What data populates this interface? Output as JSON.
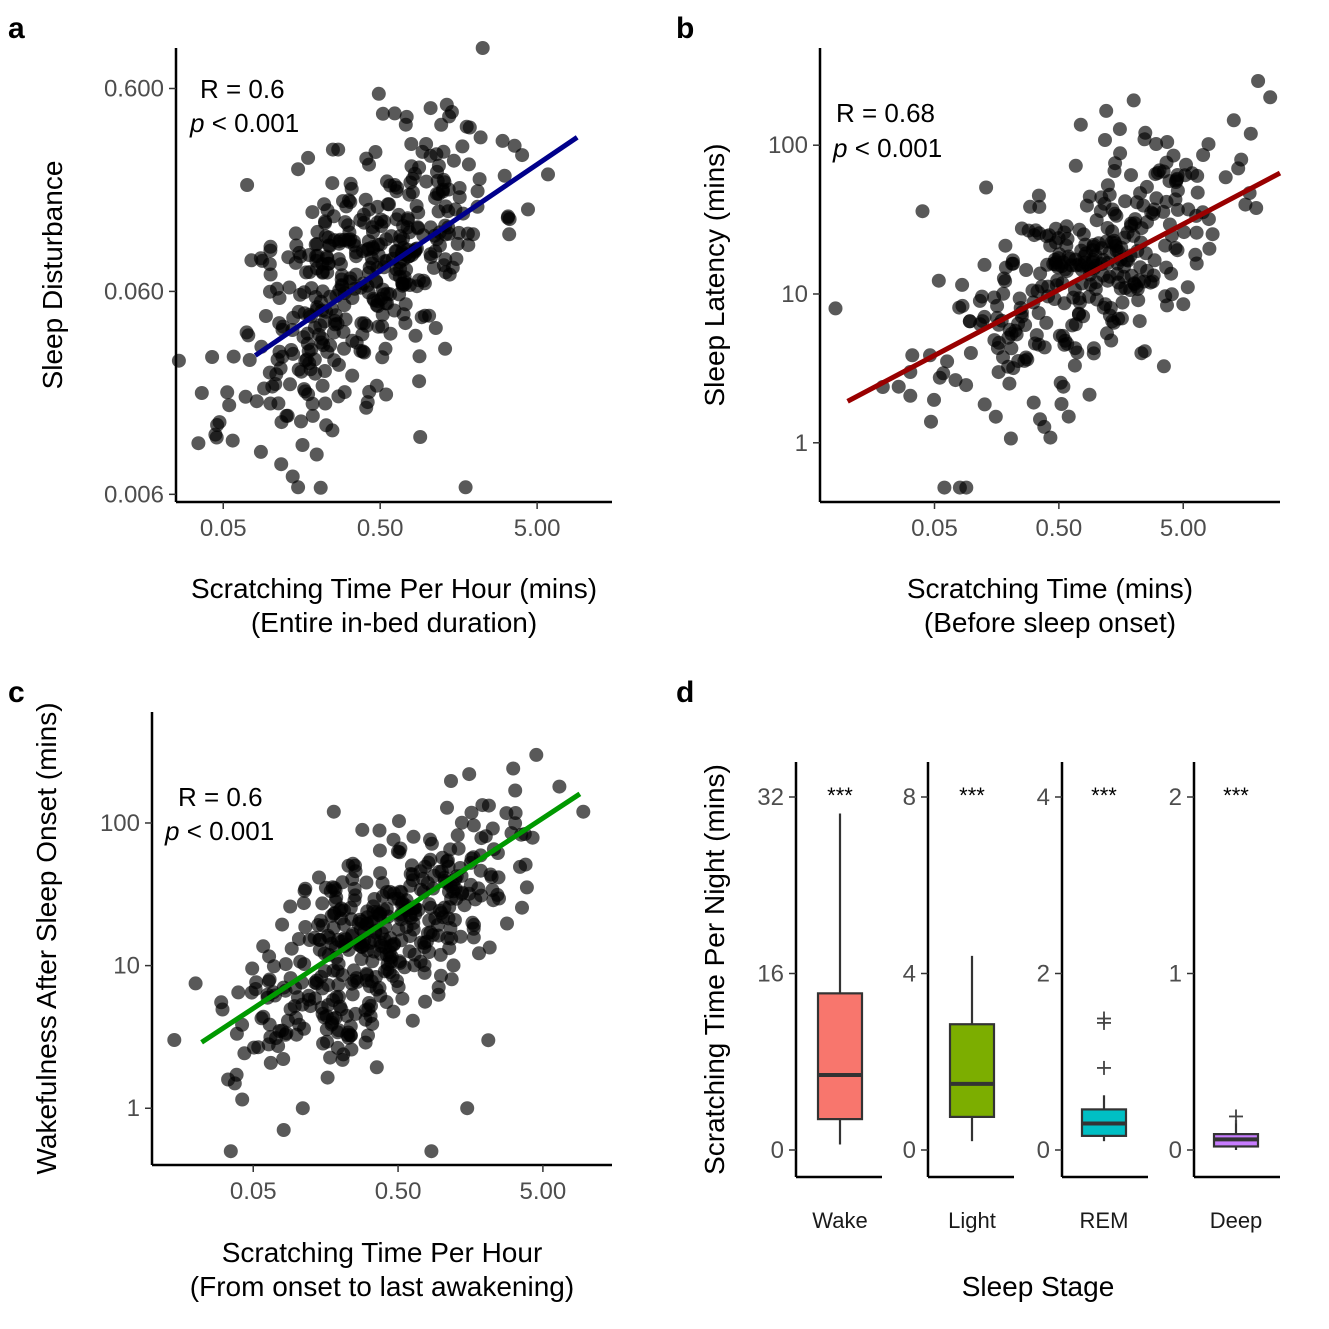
{
  "chart_data": [
    {
      "panel": "a",
      "type": "scatter",
      "xscale": "log",
      "yscale": "log",
      "xlim": [
        0.025,
        15
      ],
      "ylim": [
        0.0055,
        0.95
      ],
      "xticks": [
        0.05,
        0.5,
        5
      ],
      "xtick_labels": [
        "0.05",
        "0.50",
        "5.00"
      ],
      "yticks": [
        0.006,
        0.06,
        0.6
      ],
      "ytick_labels": [
        "0.006",
        "0.060",
        "0.600"
      ],
      "ylabel": "Sleep Disturbance",
      "xlabel_lines": [
        "Scratching Time Per Hour (mins)",
        "(Entire in-bed duration)"
      ],
      "annotation": {
        "r": "R = 0.6",
        "p_symbol": "p",
        "p_rest": " < 0.001"
      },
      "fit": {
        "x": [
          0.08,
          9
        ],
        "y": [
          0.029,
          0.345
        ],
        "color": "#00008b"
      },
      "n_points": 420,
      "seed": 11,
      "slope": 0.6,
      "x_center_log": -0.4,
      "x_sd_log": 0.42,
      "noise_sd_log": 0.3,
      "extra_points": [
        [
          0.15,
          0.0065
        ],
        [
          0.16,
          0.0105
        ],
        [
          0.9,
          0.0115
        ],
        [
          1.75,
          0.0065
        ],
        [
          0.25,
          0.3
        ],
        [
          0.27,
          0.3
        ],
        [
          0.15,
          0.24
        ],
        [
          2.25,
          0.95
        ],
        [
          0.52,
          0.45
        ]
      ]
    },
    {
      "panel": "b",
      "type": "scatter",
      "xscale": "log",
      "yscale": "log",
      "xlim": [
        0.006,
        30
      ],
      "ylim": [
        0.4,
        450
      ],
      "xticks": [
        0.05,
        0.5,
        5
      ],
      "xtick_labels": [
        "0.05",
        "0.50",
        "5.00"
      ],
      "yticks": [
        1,
        10,
        100
      ],
      "ytick_labels": [
        "1",
        "10",
        "100"
      ],
      "ylabel": "Sleep Latency (mins)",
      "xlabel_lines": [
        "Scratching Time (mins)",
        "(Before sleep onset)"
      ],
      "annotation": {
        "r": "R = 0.68",
        "p_symbol": "p",
        "p_rest": " < 0.001"
      },
      "fit": {
        "x": [
          0.01,
          30
        ],
        "y": [
          1.9,
          65
        ],
        "color": "#990000"
      },
      "n_points": 330,
      "seed": 23,
      "slope": 0.45,
      "x_center_log": -0.1,
      "x_sd_log": 0.55,
      "noise_sd_log": 0.33,
      "extra_points": [
        [
          0.008,
          8
        ],
        [
          0.06,
          0.5
        ],
        [
          0.08,
          0.5
        ],
        [
          0.09,
          0.5
        ],
        [
          0.04,
          36
        ],
        [
          0.13,
          52
        ],
        [
          0.2,
          2.5
        ],
        [
          0.6,
          1.5
        ],
        [
          1.2,
          170
        ],
        [
          2.0,
          200
        ],
        [
          20,
          270
        ],
        [
          25,
          210
        ]
      ]
    },
    {
      "panel": "c",
      "type": "scatter",
      "xscale": "log",
      "yscale": "log",
      "xlim": [
        0.01,
        15
      ],
      "ylim": [
        0.4,
        600
      ],
      "xticks": [
        0.05,
        0.5,
        5
      ],
      "xtick_labels": [
        "0.05",
        "0.50",
        "5.00"
      ],
      "yticks": [
        1,
        10,
        100
      ],
      "ytick_labels": [
        "1",
        "10",
        "100"
      ],
      "ylabel": "Wakefulness After Sleep Onset (mins)",
      "xlabel_lines": [
        "Scratching Time Per Hour",
        "(From onset to last awakening)"
      ],
      "annotation": {
        "r": "R = 0.6",
        "p_symbol": "p",
        "p_rest": " < 0.001"
      },
      "fit": {
        "x": [
          0.022,
          9
        ],
        "y": [
          2.9,
          160
        ],
        "color": "#009900"
      },
      "n_points": 430,
      "seed": 37,
      "slope": 0.62,
      "x_center_log": -0.45,
      "x_sd_log": 0.45,
      "noise_sd_log": 0.33,
      "extra_points": [
        [
          0.02,
          7.5
        ],
        [
          0.035,
          0.5
        ],
        [
          0.11,
          1
        ],
        [
          0.85,
          0.5
        ],
        [
          1.5,
          1
        ],
        [
          2.1,
          3
        ],
        [
          0.18,
          120
        ],
        [
          1.55,
          220
        ],
        [
          4.5,
          300
        ],
        [
          6.5,
          180
        ],
        [
          9.5,
          120
        ]
      ]
    },
    {
      "panel": "d",
      "type": "box",
      "ylabel": "Scratching Time Per Night (mins)",
      "xlabel": "Sleep Stage",
      "significance": "***",
      "boxes": [
        {
          "stage": "Wake",
          "color": "#f8766d",
          "ymax_axis": 34,
          "yticks": [
            0,
            16,
            32
          ],
          "ytick_labels": [
            "0",
            "16",
            "32"
          ],
          "q1": 2.8,
          "median": 6.8,
          "q3": 14.2,
          "whisker_low": 0.5,
          "whisker_high": 30.5,
          "outliers": []
        },
        {
          "stage": "Light",
          "color": "#7cae00",
          "ymax_axis": 8.5,
          "yticks": [
            0,
            4,
            8
          ],
          "ytick_labels": [
            "0",
            "4",
            "8"
          ],
          "q1": 0.75,
          "median": 1.5,
          "q3": 2.85,
          "whisker_low": 0.2,
          "whisker_high": 4.4,
          "outliers": []
        },
        {
          "stage": "REM",
          "color": "#00bfc4",
          "ymax_axis": 4.25,
          "yticks": [
            0,
            2,
            4
          ],
          "ytick_labels": [
            "0",
            "2",
            "4"
          ],
          "q1": 0.16,
          "median": 0.3,
          "q3": 0.46,
          "whisker_low": 0.1,
          "whisker_high": 0.62,
          "outliers": [
            0.93,
            1.44,
            1.49
          ]
        },
        {
          "stage": "Deep",
          "color": "#c77cff",
          "ymax_axis": 2.12,
          "yticks": [
            0,
            1,
            2
          ],
          "ytick_labels": [
            "0",
            "1",
            "2"
          ],
          "q1": 0.02,
          "median": 0.06,
          "q3": 0.09,
          "whisker_low": 0.0,
          "whisker_high": 0.17,
          "outliers": [
            0.19
          ]
        }
      ]
    }
  ]
}
